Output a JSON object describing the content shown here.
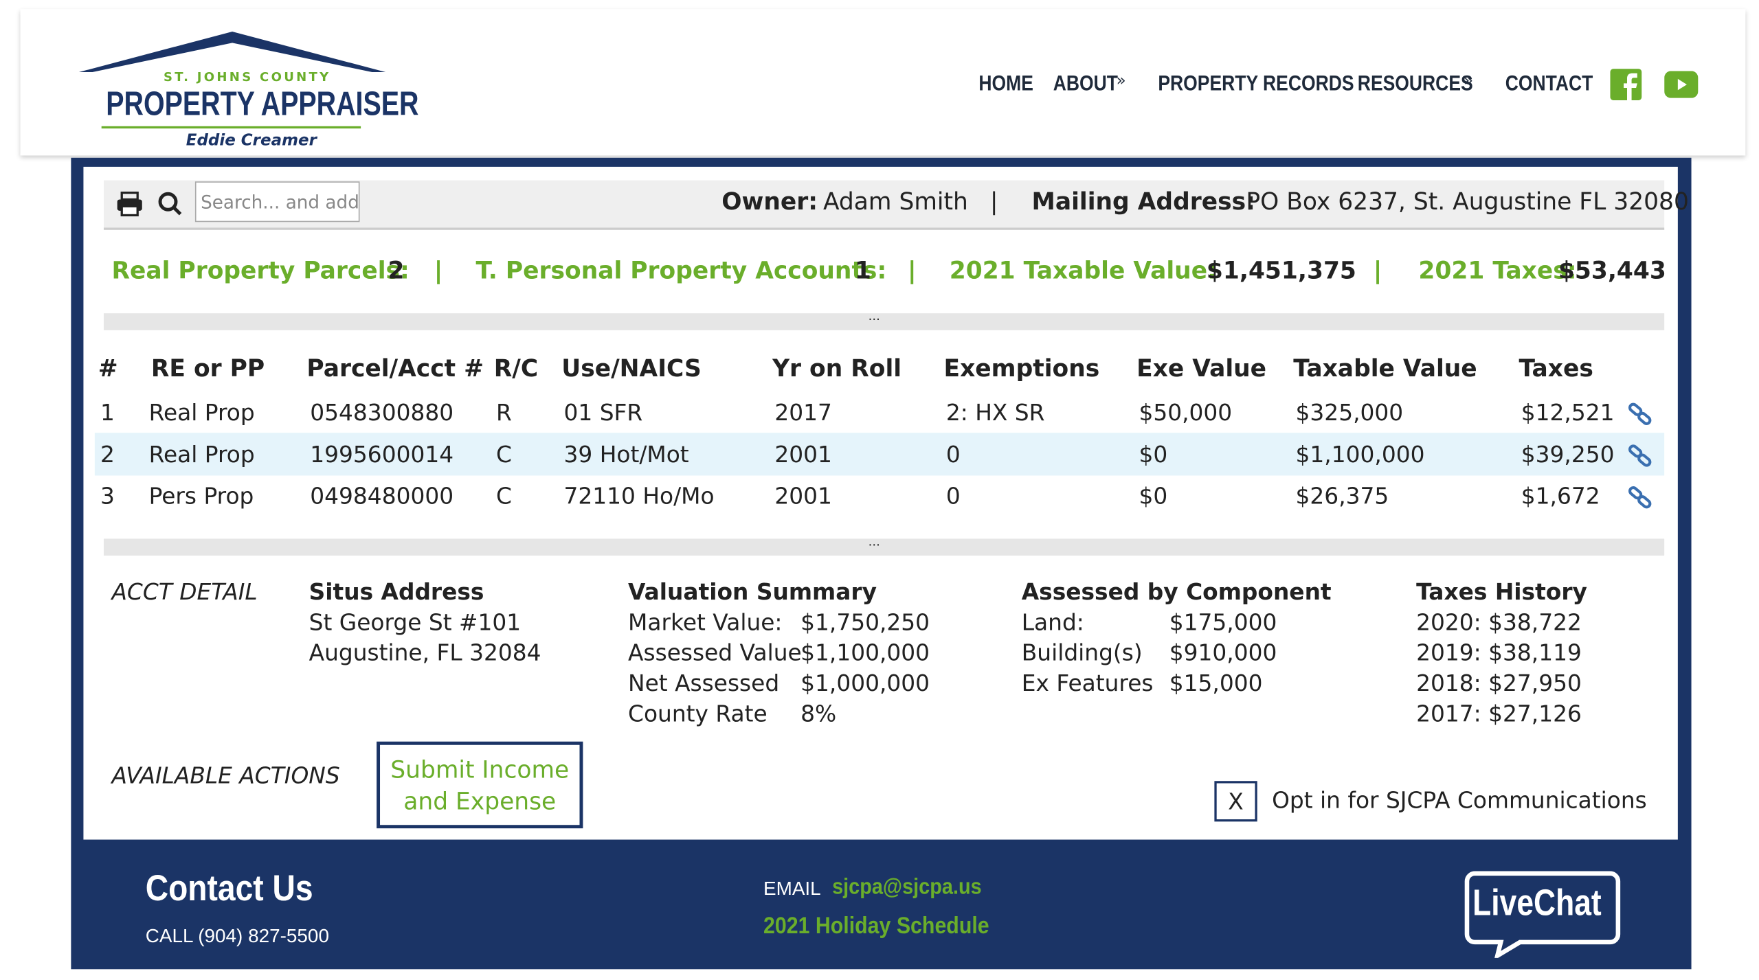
{
  "header": {
    "logo": {
      "county": "ST. JOHNS COUNTY",
      "name": "PROPERTY APPRAISER",
      "person": "Eddie Creamer"
    },
    "nav": [
      "HOME",
      "ABOUT",
      "PROPERTY RECORDS",
      "RESOURCES",
      "CONTACT"
    ]
  },
  "toolbar": {
    "search_placeholder": "Search... and add",
    "owner_label": "Owner:",
    "owner": "Adam Smith",
    "mailing_label": "Mailing Address:",
    "mailing": "PO Box 6237, St. Augustine FL 32080"
  },
  "summary": [
    {
      "label": "Real Property Parcels:",
      "value": "2"
    },
    {
      "label": "T. Personal Property Accounts:",
      "value": "1"
    },
    {
      "label": "2021 Taxable Value:",
      "value": "$1,451,375"
    },
    {
      "label": "2021 Taxes:",
      "value": "$53,443"
    }
  ],
  "dividers": [
    "...",
    "..."
  ],
  "table": {
    "columns": [
      "#",
      "RE or PP",
      "Parcel/Acct #",
      "R/C",
      "Use/NAICS",
      "Yr on Roll",
      "Exemptions",
      "Exe Value",
      "Taxable Value",
      "Taxes"
    ],
    "rows": [
      [
        "1",
        "Real Prop",
        "0548300880",
        "R",
        "01 SFR",
        "2017",
        "2: HX SR",
        "$50,000",
        "$325,000",
        "$12,521"
      ],
      [
        "2",
        "Real Prop",
        "1995600014",
        "C",
        "39 Hot/Mot",
        "2001",
        "0",
        "$0",
        "$1,100,000",
        "$39,250"
      ],
      [
        "3",
        "Pers Prop",
        "0498480000",
        "C",
        "72110 Ho/Mo",
        "2001",
        "0",
        "$0",
        "$26,375",
        "$1,672"
      ]
    ]
  },
  "acct_detail": {
    "label": "ACCT DETAIL",
    "situs": {
      "title": "Situs Address",
      "lines": [
        "St George St #101",
        "Augustine, FL 32084"
      ]
    },
    "valuation": {
      "title": "Valuation Summary",
      "rows": [
        [
          "Market Value:",
          "$1,750,250"
        ],
        [
          "Assessed Value",
          "$1,100,000"
        ],
        [
          "Net Assessed",
          "$1,000,000"
        ],
        [
          "County Rate",
          "8%"
        ]
      ]
    },
    "assessed": {
      "title": "Assessed by Component",
      "rows": [
        [
          "Land:",
          "$175,000"
        ],
        [
          "Building(s)",
          "$910,000"
        ],
        [
          "Ex Features",
          "$15,000"
        ]
      ]
    },
    "taxes_history": {
      "title": "Taxes History",
      "rows": [
        [
          "2020:",
          "$38,722"
        ],
        [
          "2019:",
          "$38,119"
        ],
        [
          "2018:",
          "$27,950"
        ],
        [
          "2017:",
          "$27,126"
        ]
      ]
    }
  },
  "actions": {
    "label": "AVAILABLE ACTIONS",
    "button": "Submit Income and Expense",
    "opt_in_box": "X",
    "opt_in": "Opt in for SJCPA Communications"
  },
  "footer": {
    "title": "Contact Us",
    "call": "CALL (904) 827-5500",
    "email_label": "EMAIL",
    "email": "sjcpa@sjcpa.us",
    "holiday": "2021 Holiday Schedule",
    "livechat": "LiveChat"
  }
}
